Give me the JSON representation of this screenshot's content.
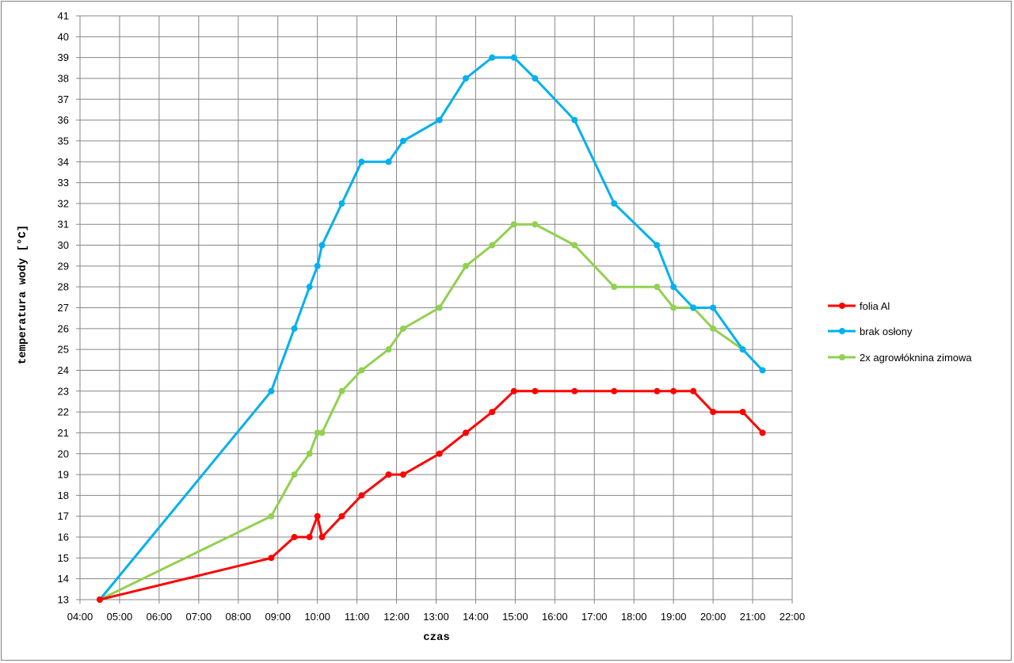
{
  "chart_data": {
    "type": "line",
    "title": "",
    "xlabel": "czas",
    "ylabel": "temperatura wody [°C]",
    "xlim": [
      "04:00",
      "22:00"
    ],
    "ylim": [
      13,
      41
    ],
    "grid": true,
    "legend_position": "right",
    "x_ticks": [
      "04:00",
      "05:00",
      "06:00",
      "07:00",
      "08:00",
      "09:00",
      "10:00",
      "11:00",
      "12:00",
      "13:00",
      "14:00",
      "15:00",
      "16:00",
      "17:00",
      "18:00",
      "19:00",
      "20:00",
      "21:00",
      "22:00"
    ],
    "y_ticks": [
      13,
      14,
      15,
      16,
      17,
      18,
      19,
      20,
      21,
      22,
      23,
      24,
      25,
      26,
      27,
      28,
      29,
      30,
      31,
      32,
      33,
      34,
      35,
      36,
      37,
      38,
      39,
      40,
      41
    ],
    "x": [
      "04:30",
      "08:50",
      "09:25",
      "09:48",
      "10:00",
      "10:07",
      "10:37",
      "11:07",
      "11:48",
      "12:10",
      "13:05",
      "13:45",
      "14:25",
      "14:58",
      "15:30",
      "16:30",
      "17:30",
      "18:35",
      "19:00",
      "19:30",
      "20:00",
      "20:45",
      "21:15"
    ],
    "series": [
      {
        "name": "folia Al",
        "color": "#ff0000",
        "values": [
          13,
          15,
          16,
          16,
          17,
          16,
          17,
          18,
          19,
          19,
          20,
          21,
          22,
          23,
          23,
          23,
          23,
          23,
          23,
          23,
          22,
          22,
          21
        ]
      },
      {
        "name": "brak osłony",
        "color": "#00b0f0",
        "values": [
          13,
          23,
          26,
          28,
          29,
          30,
          32,
          34,
          34,
          35,
          36,
          38,
          39,
          39,
          38,
          36,
          32,
          30,
          28,
          27,
          27,
          25,
          24
        ]
      },
      {
        "name": "2x agrowłóknina zimowa",
        "color": "#92d050",
        "values": [
          13,
          17,
          19,
          20,
          21,
          21,
          23,
          24,
          25,
          26,
          27,
          29,
          30,
          31,
          31,
          30,
          28,
          28,
          27,
          27,
          26,
          25,
          24
        ]
      }
    ]
  }
}
